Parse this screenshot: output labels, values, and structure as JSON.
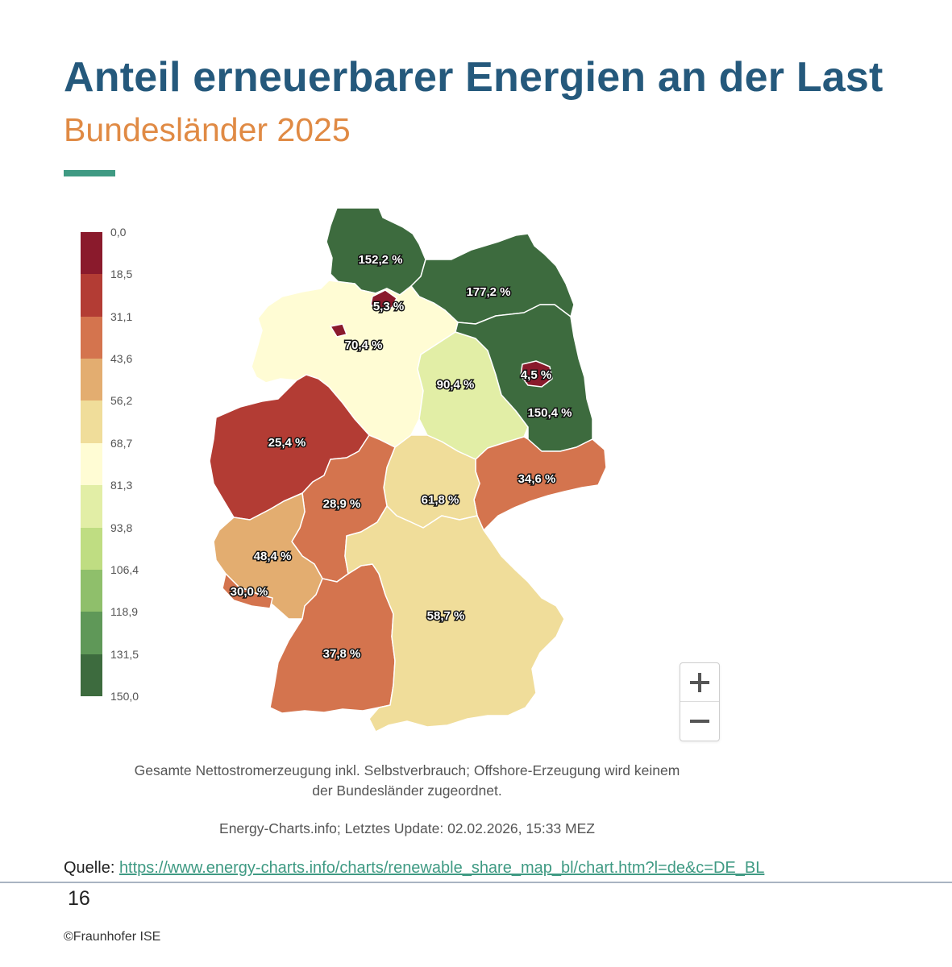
{
  "header": {
    "title": "Anteil erneuerbarer Energien an der Last",
    "subtitle": "Bundesländer 2025"
  },
  "colors": {
    "title": "#25597c",
    "subtitle": "#e08a44",
    "accent": "#3f9a83"
  },
  "legend": {
    "ticks": [
      "0,0",
      "18,5",
      "31,1",
      "43,6",
      "56,2",
      "68,7",
      "81,3",
      "93,8",
      "106,4",
      "118,9",
      "131,5",
      "150,0"
    ],
    "colors": [
      "#8a1a2c",
      "#b33c34",
      "#d4744e",
      "#e3ad70",
      "#f0dd9a",
      "#fffcd4",
      "#e2eea6",
      "#bfdd82",
      "#8fbf6b",
      "#5f9858",
      "#3d6b3e"
    ]
  },
  "chart_data": {
    "type": "choropleth",
    "unit": "%",
    "scale": {
      "min": 0,
      "max": 150
    },
    "regions": [
      {
        "id": "SH",
        "value": 152.2,
        "label": "152,2 %"
      },
      {
        "id": "MV",
        "value": 177.2,
        "label": "177,2 %"
      },
      {
        "id": "HB",
        "value": 5.3,
        "label": "5,3 %"
      },
      {
        "id": "NI",
        "value": 70.4,
        "label": "70,4 %"
      },
      {
        "id": "ST",
        "value": 90.4,
        "label": "90,4 %"
      },
      {
        "id": "BE",
        "value": 4.5,
        "label": "4,5 %"
      },
      {
        "id": "BB",
        "value": 150.4,
        "label": "150,4 %"
      },
      {
        "id": "NW",
        "value": 25.4,
        "label": "25,4 %"
      },
      {
        "id": "SN",
        "value": 34.6,
        "label": "34,6 %"
      },
      {
        "id": "TH",
        "value": 61.8,
        "label": "61,8 %"
      },
      {
        "id": "HE",
        "value": 28.9,
        "label": "28,9 %"
      },
      {
        "id": "RP",
        "value": 48.4,
        "label": "48,4 %"
      },
      {
        "id": "SL",
        "value": 30.0,
        "label": "30,0 %"
      },
      {
        "id": "BY",
        "value": 58.7,
        "label": "58,7 %"
      },
      {
        "id": "BW",
        "value": 37.8,
        "label": "37,8 %"
      }
    ]
  },
  "zoom": {
    "in_label": "+",
    "out_label": "−"
  },
  "footnote": {
    "line1": "Gesamte Nettostromerzeugung inkl. Selbstverbrauch; Offshore-Erzeugung wird keinem",
    "line2": "der Bundesländer zugeordnet.",
    "update": "Energy-Charts.info; Letztes Update: 02.02.2026, 15:33 MEZ"
  },
  "source": {
    "prefix": "Quelle: ",
    "url": "https://www.energy-charts.info/charts/renewable_share_map_bl/chart.htm?l=de&c=DE_BL"
  },
  "footer": {
    "page": "16",
    "copyright": "©Fraunhofer ISE"
  }
}
